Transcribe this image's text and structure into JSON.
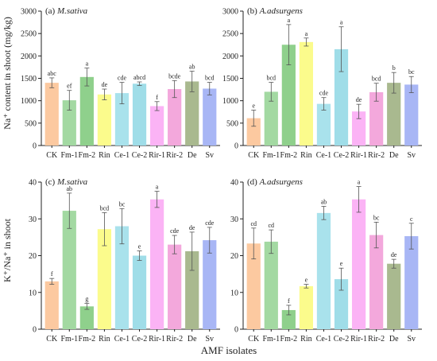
{
  "figure": {
    "xlabel": "AMF isolates",
    "ylabel_top": "Na⁺ content in shoot  (mg/kg)",
    "ylabel_bottom": "K⁺/Na⁺ in shoot"
  },
  "colors": {
    "CK": "#fcc9a0",
    "Fm-1": "#a3d9a2",
    "Fm-2": "#8fd08c",
    "Rin": "#fbfb8c",
    "Ce-1": "#a9e2ec",
    "Ce-2": "#9fdde8",
    "Rir-1": "#fbb3f5",
    "Rir-2": "#f3a8dc",
    "De": "#a9b98f",
    "Sv": "#a8b6f5"
  },
  "chart_data": [
    {
      "type": "bar",
      "title": "(a) M.sativa",
      "categories": [
        "CK",
        "Fm-1",
        "Fm-2",
        "Rin",
        "Ce-1",
        "Ce-2",
        "Rir-1",
        "Rir-2",
        "De",
        "Sv"
      ],
      "values": [
        1400,
        1010,
        1530,
        1140,
        1170,
        1380,
        880,
        1260,
        1430,
        1270
      ],
      "errors": [
        110,
        220,
        200,
        120,
        240,
        40,
        100,
        190,
        230,
        140
      ],
      "letters": [
        "abc",
        "ef",
        "a",
        "de",
        "cde",
        "abcd",
        "f",
        "bcde",
        "ab",
        "bcd"
      ],
      "ylim": [
        0,
        3000
      ],
      "yticks": [
        0,
        500,
        1000,
        1500,
        2000,
        2500,
        3000
      ]
    },
    {
      "type": "bar",
      "title": "(b) A.adsurgens",
      "categories": [
        "CK",
        "Fm-1",
        "Fm-2",
        "Rin",
        "Ce-1",
        "Ce-2",
        "Rir-1",
        "Rir-2",
        "De",
        "Sv"
      ],
      "values": [
        610,
        1200,
        2250,
        2310,
        930,
        2150,
        760,
        1190,
        1400,
        1360
      ],
      "errors": [
        180,
        210,
        450,
        90,
        140,
        500,
        160,
        200,
        230,
        180
      ],
      "letters": [
        "e",
        "bcd",
        "a",
        "a",
        "cde",
        "a",
        "de",
        "bcd",
        "b",
        "bc"
      ],
      "ylim": [
        0,
        3000
      ],
      "yticks": [
        0,
        500,
        1000,
        1500,
        2000,
        2500,
        3000
      ]
    },
    {
      "type": "bar",
      "title": "(c) M.sativa",
      "categories": [
        "CK",
        "Fm-1",
        "Fm-2",
        "Rin",
        "Ce-1",
        "Ce-2",
        "Rir-1",
        "Rir-2",
        "De",
        "Sv"
      ],
      "values": [
        13,
        32.2,
        6.2,
        27.2,
        28,
        20,
        35.3,
        23,
        21.2,
        24.2
      ],
      "errors": [
        0.8,
        4.8,
        0.8,
        4.5,
        4.8,
        1.3,
        2.2,
        2.5,
        5.2,
        3.5
      ],
      "letters": [
        "f",
        "ab",
        "g",
        "bcd",
        "bc",
        "e",
        "a",
        "cde",
        "de",
        "cde"
      ],
      "ylim": [
        0,
        40
      ],
      "yticks": [
        0,
        10,
        20,
        30,
        40
      ]
    },
    {
      "type": "bar",
      "title": "(d) A.adsurgens",
      "categories": [
        "CK",
        "Fm-1",
        "Fm-2",
        "Rin",
        "Ce-1",
        "Ce-2",
        "Rir-1",
        "Rir-2",
        "De",
        "Sv"
      ],
      "values": [
        23.3,
        23.8,
        5.2,
        11.7,
        31.6,
        13.6,
        35.3,
        25.6,
        17.8,
        25.3
      ],
      "errors": [
        4.2,
        3.2,
        1.3,
        0.5,
        1.8,
        3.0,
        3.5,
        3.5,
        1.2,
        3.5
      ],
      "letters": [
        "cd",
        "cd",
        "f",
        "e",
        "ab",
        "e",
        "a",
        "bc",
        "de",
        "c"
      ],
      "ylim": [
        0,
        40
      ],
      "yticks": [
        0,
        10,
        20,
        30,
        40
      ]
    }
  ]
}
